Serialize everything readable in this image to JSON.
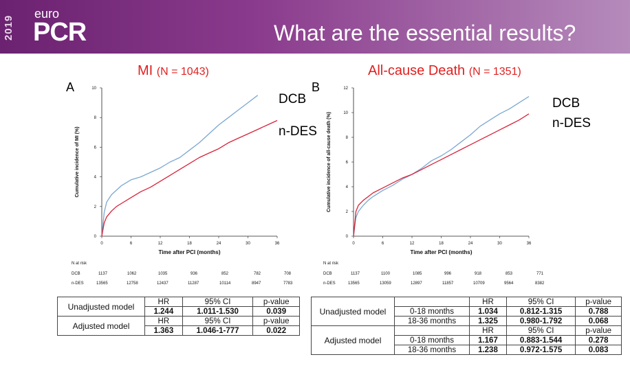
{
  "header": {
    "logo_year": "2019",
    "logo_euro": "euro",
    "logo_pcr": "PCR",
    "title": "What are the essential results?"
  },
  "colors": {
    "dcb": "#7ba7d1",
    "ndes": "#d8223a",
    "header": "#7a2a7e",
    "subtitle": "#e02020"
  },
  "panel_a": {
    "letter": "A",
    "title": "MI",
    "n_text": "(N = 1043)",
    "label_dcb": "DCB",
    "label_ndes": "n-DES",
    "risk": {
      "header": "N at risk",
      "rows": [
        {
          "name": "DCB",
          "values": [
            "1137",
            "1062",
            "1035",
            "936",
            "852",
            "782",
            "708"
          ]
        },
        {
          "name": "n-DES",
          "values": [
            "13565",
            "12758",
            "12437",
            "11287",
            "10114",
            "8947",
            "7783"
          ]
        }
      ]
    }
  },
  "panel_b": {
    "letter": "B",
    "title": "All-cause Death",
    "n_text": "(N = 1351)",
    "label_dcb": "DCB",
    "label_ndes": "n-DES",
    "risk": {
      "header": "N at risk",
      "rows": [
        {
          "name": "DCB",
          "values": [
            "1137",
            "1100",
            "1085",
            "996",
            "918",
            "853",
            "771"
          ]
        },
        {
          "name": "n-DES",
          "values": [
            "13565",
            "13059",
            "12897",
            "11857",
            "10709",
            "9564",
            "8382"
          ]
        }
      ]
    }
  },
  "chart_data": [
    {
      "type": "line",
      "title": "MI (N = 1043)",
      "xlabel": "Time after PCI (months)",
      "ylabel": "Cumulative incidence of MI (%)",
      "xlim": [
        0,
        36
      ],
      "ylim": [
        0,
        10
      ],
      "xticks": [
        "0",
        "6",
        "12",
        "18",
        "24",
        "30",
        "36"
      ],
      "yticks": [
        "0",
        "2",
        "4",
        "6",
        "8",
        "10"
      ],
      "grid": false,
      "series": [
        {
          "name": "DCB",
          "x": [
            0,
            0.5,
            1,
            2,
            3,
            4,
            6,
            8,
            10,
            12,
            14,
            16,
            18,
            20,
            22,
            24,
            26,
            28,
            30,
            32
          ],
          "y": [
            0,
            1.6,
            2.3,
            2.8,
            3.1,
            3.4,
            3.8,
            4.0,
            4.3,
            4.6,
            5.0,
            5.3,
            5.8,
            6.3,
            6.9,
            7.5,
            8.0,
            8.5,
            9.0,
            9.5
          ]
        },
        {
          "name": "n-DES",
          "x": [
            0,
            0.5,
            1,
            2,
            3,
            4,
            6,
            8,
            10,
            12,
            14,
            16,
            18,
            20,
            22,
            24,
            26,
            28,
            30,
            32,
            34,
            36
          ],
          "y": [
            0,
            0.9,
            1.3,
            1.7,
            2.0,
            2.2,
            2.6,
            3.0,
            3.3,
            3.7,
            4.1,
            4.5,
            4.9,
            5.3,
            5.6,
            5.9,
            6.3,
            6.6,
            6.9,
            7.2,
            7.5,
            7.8
          ]
        }
      ]
    },
    {
      "type": "line",
      "title": "All-cause Death (N = 1351)",
      "xlabel": "Time after PCI (months)",
      "ylabel": "Cumulative incidence of all-cause death (%)",
      "xlim": [
        0,
        36
      ],
      "ylim": [
        0,
        12
      ],
      "xticks": [
        "0",
        "6",
        "12",
        "18",
        "24",
        "30",
        "36"
      ],
      "yticks": [
        "0",
        "2",
        "4",
        "6",
        "8",
        "10",
        "12"
      ],
      "grid": false,
      "series": [
        {
          "name": "DCB",
          "x": [
            0,
            0.5,
            1,
            2,
            3,
            4,
            6,
            8,
            10,
            12,
            14,
            16,
            18,
            20,
            22,
            24,
            26,
            28,
            30,
            32,
            34,
            36
          ],
          "y": [
            0,
            1.5,
            2.0,
            2.5,
            2.9,
            3.2,
            3.7,
            4.1,
            4.6,
            5.0,
            5.5,
            6.1,
            6.5,
            7.0,
            7.6,
            8.2,
            8.9,
            9.4,
            9.9,
            10.3,
            10.8,
            11.3
          ]
        },
        {
          "name": "n-DES",
          "x": [
            0,
            0.5,
            1,
            2,
            3,
            4,
            6,
            8,
            10,
            12,
            14,
            16,
            18,
            20,
            22,
            24,
            26,
            28,
            30,
            32,
            34,
            36
          ],
          "y": [
            0,
            2.0,
            2.5,
            2.9,
            3.2,
            3.5,
            3.9,
            4.3,
            4.7,
            5.0,
            5.4,
            5.8,
            6.2,
            6.6,
            7.0,
            7.4,
            7.8,
            8.2,
            8.6,
            9.0,
            9.4,
            9.9
          ]
        }
      ]
    }
  ],
  "table_a": {
    "header": {
      "hr": "HR",
      "ci": "95% CI",
      "p": "p-value"
    },
    "rows": [
      {
        "model": "Unadjusted model",
        "hr": "1.244",
        "ci": "1.011-1.530",
        "p": "0.039"
      },
      {
        "model": "Adjusted model",
        "hr": "1.363",
        "ci": "1.046-1-777",
        "p": "0.022"
      }
    ]
  },
  "table_b": {
    "header": {
      "hr": "HR",
      "ci": "95% CI",
      "p": "p-value"
    },
    "groups": [
      {
        "model": "Unadjusted model",
        "rows": [
          {
            "period": "0-18 months",
            "hr": "1.034",
            "ci": "0.812-1.315",
            "p": "0.788"
          },
          {
            "period": "18-36 months",
            "hr": "1.325",
            "ci": "0.980-1.792",
            "p": "0.068"
          }
        ]
      },
      {
        "model": "Adjusted model",
        "rows": [
          {
            "period": "0-18 months",
            "hr": "1.167",
            "ci": "0.883-1.544",
            "p": "0.278"
          },
          {
            "period": "18-36 months",
            "hr": "1.238",
            "ci": "0.972-1.575",
            "p": "0.083"
          }
        ]
      }
    ]
  }
}
